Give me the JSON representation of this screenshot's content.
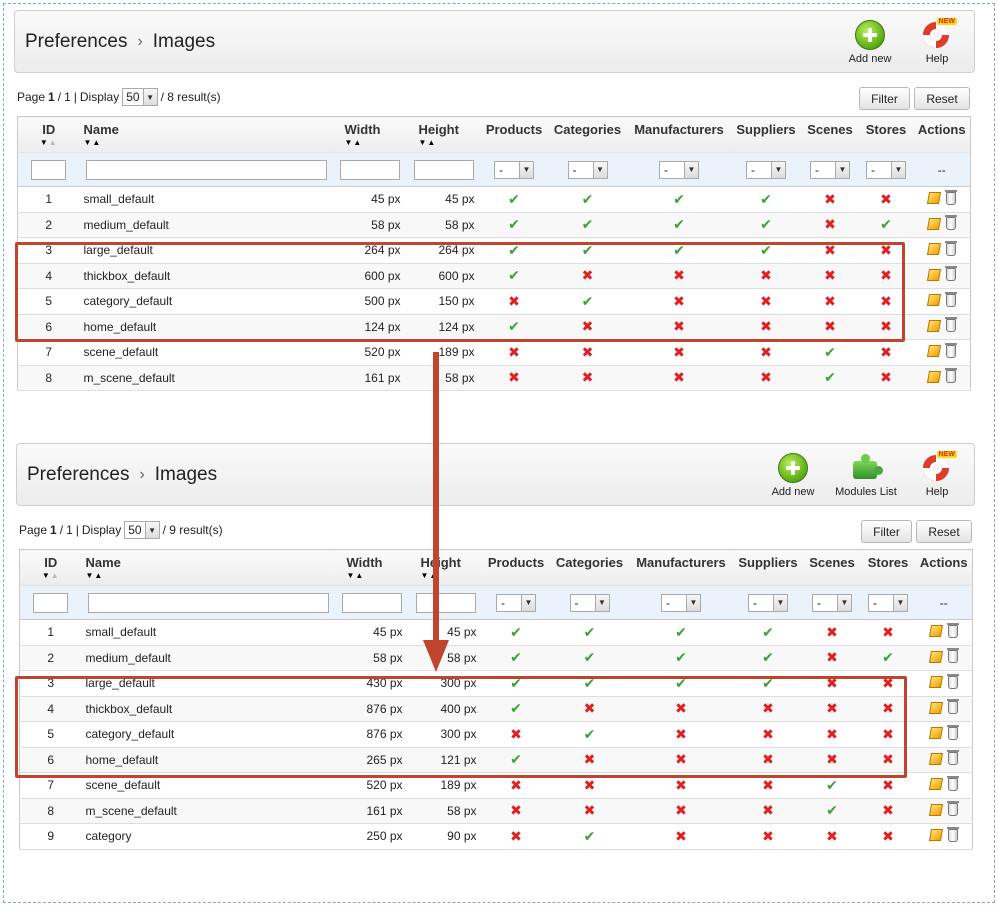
{
  "panels": [
    {
      "breadcrumb": [
        "Preferences",
        "Images"
      ],
      "toolbar": [
        {
          "icon": "add-new-icon",
          "label": "Add new"
        },
        {
          "icon": "help-icon",
          "label": "Help"
        }
      ],
      "pager": {
        "prefix": "Page",
        "page": "1",
        "total": "1",
        "display": "Display",
        "per_page": "50",
        "results": "/ 8 result(s)"
      },
      "filter_label": "Filter",
      "reset_label": "Reset",
      "columns": [
        "ID",
        "Name",
        "Width",
        "Height",
        "Products",
        "Categories",
        "Manufacturers",
        "Suppliers",
        "Scenes",
        "Stores",
        "Actions"
      ],
      "filter_select": "-",
      "actions_placeholder": "--",
      "rows": [
        {
          "id": "1",
          "name": "small_default",
          "width": "45 px",
          "height": "45 px",
          "products": true,
          "categories": true,
          "manufacturers": true,
          "suppliers": true,
          "scenes": false,
          "stores": false
        },
        {
          "id": "2",
          "name": "medium_default",
          "width": "58 px",
          "height": "58 px",
          "products": true,
          "categories": true,
          "manufacturers": true,
          "suppliers": true,
          "scenes": false,
          "stores": true
        },
        {
          "id": "3",
          "name": "large_default",
          "width": "264 px",
          "height": "264 px",
          "products": true,
          "categories": true,
          "manufacturers": true,
          "suppliers": true,
          "scenes": false,
          "stores": false
        },
        {
          "id": "4",
          "name": "thickbox_default",
          "width": "600 px",
          "height": "600 px",
          "products": true,
          "categories": false,
          "manufacturers": false,
          "suppliers": false,
          "scenes": false,
          "stores": false
        },
        {
          "id": "5",
          "name": "category_default",
          "width": "500 px",
          "height": "150 px",
          "products": false,
          "categories": true,
          "manufacturers": false,
          "suppliers": false,
          "scenes": false,
          "stores": false
        },
        {
          "id": "6",
          "name": "home_default",
          "width": "124 px",
          "height": "124 px",
          "products": true,
          "categories": false,
          "manufacturers": false,
          "suppliers": false,
          "scenes": false,
          "stores": false
        },
        {
          "id": "7",
          "name": "scene_default",
          "width": "520 px",
          "height": "189 px",
          "products": false,
          "categories": false,
          "manufacturers": false,
          "suppliers": false,
          "scenes": true,
          "stores": false
        },
        {
          "id": "8",
          "name": "m_scene_default",
          "width": "161 px",
          "height": "58 px",
          "products": false,
          "categories": false,
          "manufacturers": false,
          "suppliers": false,
          "scenes": true,
          "stores": false
        }
      ]
    },
    {
      "breadcrumb": [
        "Preferences",
        "Images"
      ],
      "toolbar": [
        {
          "icon": "add-new-icon",
          "label": "Add new"
        },
        {
          "icon": "modules-list-icon",
          "label": "Modules List"
        },
        {
          "icon": "help-icon",
          "label": "Help"
        }
      ],
      "pager": {
        "prefix": "Page",
        "page": "1",
        "total": "1",
        "display": "Display",
        "per_page": "50",
        "results": "/ 9 result(s)"
      },
      "filter_label": "Filter",
      "reset_label": "Reset",
      "columns": [
        "ID",
        "Name",
        "Width",
        "Height",
        "Products",
        "Categories",
        "Manufacturers",
        "Suppliers",
        "Scenes",
        "Stores",
        "Actions"
      ],
      "filter_select": "-",
      "actions_placeholder": "--",
      "rows": [
        {
          "id": "1",
          "name": "small_default",
          "width": "45 px",
          "height": "45 px",
          "products": true,
          "categories": true,
          "manufacturers": true,
          "suppliers": true,
          "scenes": false,
          "stores": false
        },
        {
          "id": "2",
          "name": "medium_default",
          "width": "58 px",
          "height": "58 px",
          "products": true,
          "categories": true,
          "manufacturers": true,
          "suppliers": true,
          "scenes": false,
          "stores": true
        },
        {
          "id": "3",
          "name": "large_default",
          "width": "430 px",
          "height": "300 px",
          "products": true,
          "categories": true,
          "manufacturers": true,
          "suppliers": true,
          "scenes": false,
          "stores": false
        },
        {
          "id": "4",
          "name": "thickbox_default",
          "width": "876 px",
          "height": "400 px",
          "products": true,
          "categories": false,
          "manufacturers": false,
          "suppliers": false,
          "scenes": false,
          "stores": false
        },
        {
          "id": "5",
          "name": "category_default",
          "width": "876 px",
          "height": "300 px",
          "products": false,
          "categories": true,
          "manufacturers": false,
          "suppliers": false,
          "scenes": false,
          "stores": false
        },
        {
          "id": "6",
          "name": "home_default",
          "width": "265 px",
          "height": "121 px",
          "products": true,
          "categories": false,
          "manufacturers": false,
          "suppliers": false,
          "scenes": false,
          "stores": false
        },
        {
          "id": "7",
          "name": "scene_default",
          "width": "520 px",
          "height": "189 px",
          "products": false,
          "categories": false,
          "manufacturers": false,
          "suppliers": false,
          "scenes": true,
          "stores": false
        },
        {
          "id": "8",
          "name": "m_scene_default",
          "width": "161 px",
          "height": "58 px",
          "products": false,
          "categories": false,
          "manufacturers": false,
          "suppliers": false,
          "scenes": true,
          "stores": false
        },
        {
          "id": "9",
          "name": "category",
          "width": "250 px",
          "height": "90 px",
          "products": false,
          "categories": true,
          "manufacturers": false,
          "suppliers": false,
          "scenes": false,
          "stores": false
        }
      ]
    }
  ],
  "annotation": {
    "highlight_color": "#c0452f",
    "check_color": "#3aa336",
    "cross_color": "#e02020"
  }
}
